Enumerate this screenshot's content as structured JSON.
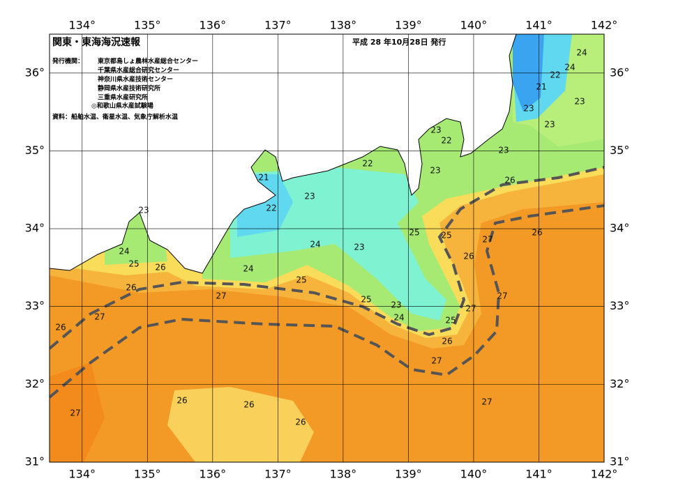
{
  "header": {
    "title": "関東・東海海況速報",
    "date": "平成 28 年10月28日 発行",
    "issuer_label": "発行機関：",
    "issuers": [
      "東京都島しょ農林水産総合センター",
      "千葉県水産総合研究センター",
      "神奈川県水産技術センター",
      "静岡県水産技術研究所",
      "三重県水産研究所",
      "◎和歌山県水産試験場"
    ],
    "source": "資料：船舶水温、衛星水温、気象庁解析水温"
  },
  "map": {
    "lon_ticks": [
      {
        "value": 134,
        "label": "134°"
      },
      {
        "value": 135,
        "label": "135°"
      },
      {
        "value": 136,
        "label": "136°"
      },
      {
        "value": 137,
        "label": "137°"
      },
      {
        "value": 138,
        "label": "138°"
      },
      {
        "value": 139,
        "label": "139°"
      },
      {
        "value": 140,
        "label": "140°"
      },
      {
        "value": 141,
        "label": "141°"
      },
      {
        "value": 142,
        "label": "142°"
      }
    ],
    "lat_ticks": [
      {
        "value": 31,
        "label": "31°"
      },
      {
        "value": 32,
        "label": "32°"
      },
      {
        "value": 33,
        "label": "33°"
      },
      {
        "value": 34,
        "label": "34°"
      },
      {
        "value": 35,
        "label": "35°"
      },
      {
        "value": 36,
        "label": "36°"
      }
    ],
    "contour_labels": [
      24,
      24,
      22,
      21,
      23,
      23,
      23,
      23,
      22,
      23,
      22,
      23,
      21,
      26,
      23,
      22,
      23,
      25,
      25,
      27,
      26,
      24,
      23,
      24,
      26,
      25,
      26,
      24,
      25,
      26,
      27,
      27,
      25,
      23,
      27,
      24,
      25,
      27,
      26,
      26,
      27,
      26,
      27,
      26,
      27,
      26
    ]
  }
}
